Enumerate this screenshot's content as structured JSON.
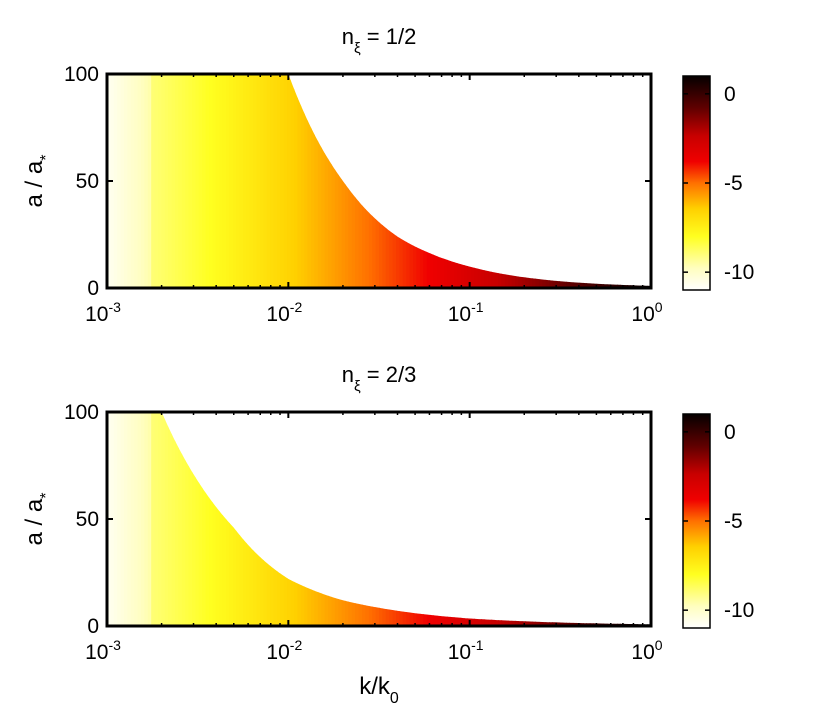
{
  "chart_data": [
    {
      "type": "heatmap",
      "title_prefix": "n",
      "title_subscript": "ξ",
      "title_suffix": " = 1/2",
      "xlabel": "",
      "ylabel_text": "a / a",
      "ylabel_subscript": "*",
      "x_scale": "log",
      "xlim": [
        0.001,
        1
      ],
      "ylim": [
        0,
        100
      ],
      "x_ticks": [
        {
          "base": "10",
          "exp": "-3"
        },
        {
          "base": "10",
          "exp": "-2"
        },
        {
          "base": "10",
          "exp": "-1"
        },
        {
          "base": "10",
          "exp": "0"
        }
      ],
      "y_ticks": [
        "0",
        "50",
        "100"
      ],
      "boundary_a_over_astar": [
        [
          0.01,
          100
        ],
        [
          0.02,
          50
        ],
        [
          0.04,
          24
        ],
        [
          0.1,
          10
        ],
        [
          0.2,
          5
        ],
        [
          0.5,
          2
        ],
        [
          1,
          1
        ]
      ],
      "colorbar": {
        "range": [
          -11,
          1
        ],
        "ticks": [
          "0",
          "-5",
          "-10"
        ],
        "colormap": "hot (reversed)"
      }
    },
    {
      "type": "heatmap",
      "title_prefix": "n",
      "title_subscript": "ξ",
      "title_suffix": " = 2/3",
      "xlabel_text": "k/k",
      "xlabel_subscript": "0",
      "ylabel_text": "a / a",
      "ylabel_subscript": "*",
      "x_scale": "log",
      "xlim": [
        0.001,
        1
      ],
      "ylim": [
        0,
        100
      ],
      "x_ticks": [
        {
          "base": "10",
          "exp": "-3"
        },
        {
          "base": "10",
          "exp": "-2"
        },
        {
          "base": "10",
          "exp": "-1"
        },
        {
          "base": "10",
          "exp": "0"
        }
      ],
      "y_ticks": [
        "0",
        "50",
        "100"
      ],
      "boundary_a_over_astar": [
        [
          0.002,
          100
        ],
        [
          0.005,
          46
        ],
        [
          0.01,
          22
        ],
        [
          0.02,
          12
        ],
        [
          0.05,
          6
        ],
        [
          0.1,
          3.5
        ],
        [
          0.2,
          2.2
        ],
        [
          0.5,
          1.2
        ],
        [
          1,
          0.8
        ]
      ],
      "colorbar": {
        "range": [
          -11,
          1
        ],
        "ticks": [
          "0",
          "-5",
          "-10"
        ],
        "colormap": "hot (reversed)"
      }
    }
  ]
}
